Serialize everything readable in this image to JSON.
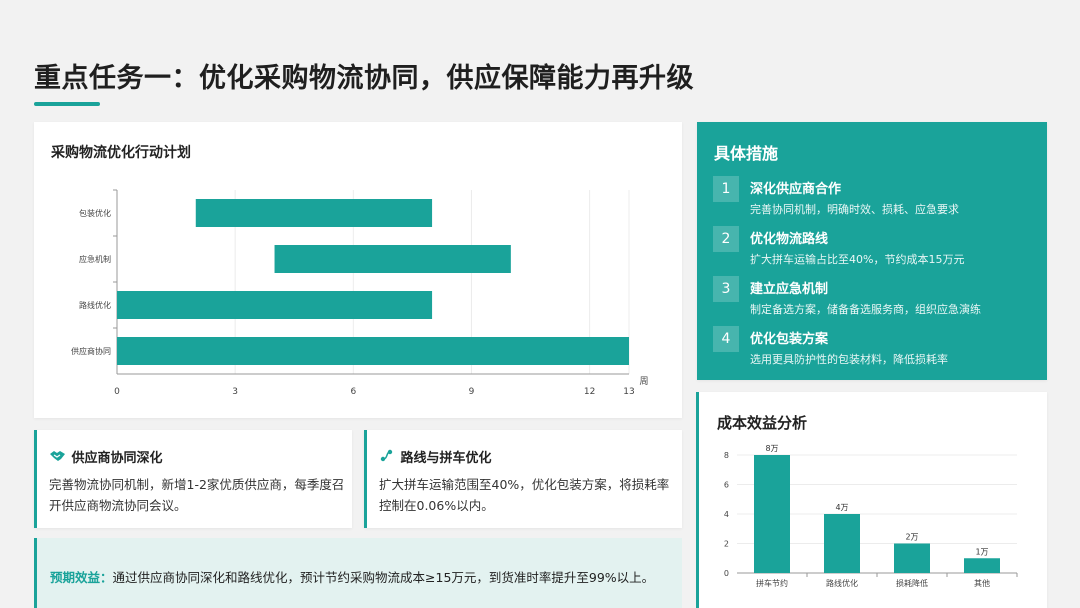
{
  "header": {
    "title": "重点任务一：优化采购物流协同，供应保障能力再升级"
  },
  "colors": {
    "accent": "#1aa39a",
    "light_bg": "#e3f2f0"
  },
  "gantt": {
    "title": "采购物流优化行动计划",
    "unit": "周"
  },
  "measures": {
    "title": "具体措施",
    "items": [
      {
        "num": "1",
        "head": "深化供应商合作",
        "desc": "完善协同机制，明确时效、损耗、应急要求"
      },
      {
        "num": "2",
        "head": "优化物流路线",
        "desc": "扩大拼车运输占比至40%，节约成本15万元"
      },
      {
        "num": "3",
        "head": "建立应急机制",
        "desc": "制定备选方案，储备备选服务商，组织应急演练"
      },
      {
        "num": "4",
        "head": "优化包装方案",
        "desc": "选用更具防护性的包装材料，降低损耗率"
      }
    ]
  },
  "benefit": {
    "title": "成本效益分析"
  },
  "info": [
    {
      "icon": "handshake-icon",
      "head": "供应商协同深化",
      "body": "完善物流协同机制，新增1-2家优质供应商，每季度召开供应商物流协同会议。"
    },
    {
      "icon": "route-icon",
      "head": "路线与拼车优化",
      "body": "扩大拼车运输范围至40%，优化包装方案，将损耗率控制在0.06%以内。"
    }
  ],
  "expected": {
    "label": "预期效益：",
    "text": "通过供应商协同深化和路线优化，预计节约采购物流成本≥15万元，到货准时率提升至99%以上。"
  },
  "chart_data": [
    {
      "type": "bar",
      "orientation": "horizontal-gantt",
      "title": "采购物流优化行动计划",
      "categories": [
        "包装优化",
        "应急机制",
        "路线优化",
        "供应商协同"
      ],
      "start": [
        2,
        4,
        0,
        0
      ],
      "end": [
        8,
        10,
        8,
        13
      ],
      "xticks": [
        0,
        3,
        6,
        9,
        12,
        13
      ],
      "xlim": [
        0,
        13
      ],
      "xlabel": "周",
      "color": "#1aa39a"
    },
    {
      "type": "bar",
      "title": "成本效益分析",
      "categories": [
        "拼车节约",
        "路线优化",
        "损耗降低",
        "其他"
      ],
      "values": [
        8,
        4,
        2,
        1
      ],
      "data_labels": [
        "8万",
        "4万",
        "2万",
        "1万"
      ],
      "yticks": [
        0,
        2,
        4,
        6,
        8
      ],
      "ylim": [
        0,
        8
      ],
      "color": "#1aa39a"
    }
  ]
}
